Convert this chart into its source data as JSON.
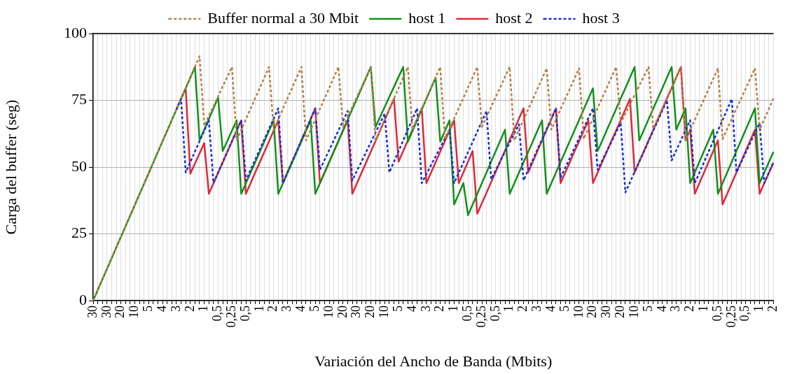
{
  "chart_data": {
    "type": "line",
    "xlabel": "Variación del Ancho de Banda (Mbits)",
    "ylabel": "Carga del buffer (seg)",
    "legend": "top",
    "grid": true,
    "marker": "none",
    "ylim": [
      0,
      100
    ],
    "yticks": [
      0,
      25,
      50,
      75,
      100
    ],
    "categories": [
      "30",
      null,
      null,
      "30",
      null,
      null,
      "20",
      null,
      null,
      "10",
      null,
      null,
      "5",
      null,
      null,
      "4",
      null,
      null,
      "3",
      null,
      null,
      "2",
      null,
      null,
      "1",
      null,
      null,
      "0,5",
      null,
      null,
      "0,25",
      null,
      null,
      "0,5",
      null,
      null,
      "1",
      null,
      null,
      "2",
      null,
      null,
      "3",
      null,
      null,
      "4",
      null,
      null,
      "5",
      null,
      null,
      "10",
      null,
      null,
      "20",
      null,
      null,
      "30",
      null,
      null,
      "20",
      null,
      null,
      "10",
      null,
      null,
      "5",
      null,
      null,
      "4",
      null,
      null,
      "3",
      null,
      null,
      "2",
      null,
      null,
      "1",
      null,
      null,
      "0,5",
      null,
      null,
      "0,25",
      null,
      null,
      "0,5",
      null,
      null,
      "1",
      null,
      null,
      "2",
      null,
      null,
      "3",
      null,
      null,
      "4",
      null,
      null,
      "5",
      null,
      null,
      "10",
      null,
      null,
      "20",
      null,
      null,
      "30",
      null,
      null,
      "20",
      null,
      null,
      "10",
      null,
      null,
      "5",
      null,
      null,
      "4",
      null,
      null,
      "3",
      null,
      null,
      "2",
      null,
      null,
      "1",
      null,
      null,
      "0,5",
      null,
      null,
      "0,25",
      null,
      null,
      "0,5",
      null,
      null,
      "1",
      null,
      null,
      "2"
    ],
    "series": [
      {
        "name": "Buffer normal a 30 Mbit",
        "color": "#b5814a",
        "line_style": "dashed",
        "values": [
          0,
          4,
          8,
          11.9,
          15.9,
          19.9,
          23.9,
          27.8,
          31.8,
          35.8,
          39.8,
          43.7,
          47.7,
          51.7,
          55.7,
          59.7,
          63.6,
          67.6,
          71.6,
          75.6,
          79.5,
          83.5,
          87.5,
          91.5,
          65.5,
          69.2,
          72.8,
          76.5,
          80.2,
          83.8,
          87.5,
          60,
          63.9,
          67.9,
          71.8,
          75.7,
          79.6,
          83.6,
          87.5,
          64,
          67.9,
          71.8,
          75.8,
          79.7,
          83.6,
          87.5,
          60,
          63.9,
          67.9,
          71.8,
          75.7,
          79.6,
          83.6,
          87.5,
          65,
          68.8,
          72.5,
          76.3,
          80,
          83.8,
          87.5,
          60,
          63.9,
          67.9,
          71.8,
          75.7,
          79.6,
          83.6,
          87.5,
          64,
          67.9,
          71.8,
          75.8,
          79.7,
          83.6,
          87.5,
          60.5,
          64.4,
          68.2,
          72.1,
          75.9,
          79.8,
          83.6,
          87.5,
          65,
          68.8,
          72.5,
          76.3,
          80,
          83.8,
          87.5,
          60,
          63.9,
          67.7,
          71.6,
          75.4,
          79.3,
          83.1,
          87,
          64,
          67.8,
          71.7,
          75.5,
          79.3,
          83.2,
          87,
          60.5,
          64.4,
          68.2,
          72.1,
          75.9,
          79.8,
          83.6,
          87.5,
          66.5,
          70,
          73.5,
          77,
          80.5,
          84,
          87.5,
          64.5,
          68.3,
          72.2,
          76,
          79.8,
          83.7,
          87.5,
          60,
          63.9,
          67.7,
          71.6,
          75.4,
          79.3,
          83.1,
          87,
          60.5,
          64.3,
          68.1,
          71.9,
          75.6,
          79.4,
          83.2,
          87,
          64,
          67.9,
          71.8,
          75.7
        ]
      },
      {
        "name": "host 1",
        "color": "#12901a",
        "line_style": "solid",
        "values": [
          0,
          4,
          8,
          11.9,
          15.9,
          19.9,
          23.9,
          27.8,
          31.8,
          35.8,
          39.8,
          43.7,
          47.7,
          51.7,
          55.7,
          59.7,
          63.6,
          67.6,
          71.6,
          75.6,
          79.5,
          83.5,
          87.5,
          60,
          64,
          68,
          72,
          76,
          56,
          59.8,
          63.7,
          67.5,
          40,
          43.9,
          47.9,
          51.8,
          55.7,
          59.6,
          63.6,
          67.5,
          40,
          43.9,
          47.9,
          51.8,
          55.7,
          59.6,
          63.6,
          67.5,
          40,
          44,
          47.9,
          51.9,
          55.8,
          59.8,
          63.8,
          67.7,
          71.7,
          75.6,
          79.6,
          83.5,
          87.5,
          65,
          68.8,
          72.5,
          76.3,
          80,
          83.8,
          87.5,
          59.5,
          63.5,
          67.5,
          71.5,
          75.5,
          79.5,
          83.5,
          59.5,
          63.5,
          67.5,
          36,
          40,
          44,
          32,
          36,
          40,
          44,
          48,
          52,
          56,
          60,
          64,
          40,
          43.9,
          47.9,
          51.8,
          55.7,
          59.6,
          63.6,
          67.5,
          40,
          44,
          47.9,
          51.9,
          55.8,
          59.8,
          63.7,
          67.7,
          71.6,
          75.6,
          79.5,
          56,
          59.9,
          63.9,
          67.8,
          71.8,
          75.7,
          79.6,
          83.6,
          87.5,
          60,
          63.9,
          67.9,
          71.8,
          75.7,
          79.6,
          83.6,
          87.5,
          64,
          68,
          72,
          44,
          48,
          52,
          56,
          60,
          64,
          40,
          44,
          48,
          52,
          56,
          60,
          64,
          68,
          72,
          44,
          47.9,
          51.8,
          55.7
        ]
      },
      {
        "name": "host 2",
        "color": "#dc2a3a",
        "line_style": "solid",
        "values": [
          null,
          null,
          null,
          null,
          null,
          null,
          null,
          null,
          null,
          null,
          null,
          null,
          null,
          null,
          null,
          null,
          null,
          null,
          71.6,
          75.6,
          79.5,
          47.5,
          51.3,
          55.2,
          59,
          40,
          43.9,
          47.9,
          51.8,
          55.7,
          59.6,
          63.6,
          67.5,
          40,
          43.9,
          47.9,
          51.8,
          55.7,
          59.6,
          63.6,
          67.5,
          44,
          48,
          52,
          56,
          60,
          64,
          68,
          72,
          44,
          47.9,
          51.8,
          55.8,
          59.7,
          63.6,
          67.5,
          40,
          43.9,
          47.9,
          51.8,
          55.8,
          59.7,
          63.7,
          67.6,
          71.6,
          75.5,
          52,
          56,
          60,
          64,
          68,
          72,
          44,
          47.9,
          51.8,
          55.8,
          59.7,
          63.6,
          67.5,
          44,
          48,
          52,
          56,
          32.5,
          36.5,
          40.4,
          44.4,
          48.3,
          52.3,
          56.2,
          60.2,
          64.1,
          68.1,
          72,
          48,
          52,
          56,
          60,
          64,
          68,
          72,
          44,
          47.9,
          51.8,
          55.8,
          59.7,
          63.6,
          67.5,
          44,
          47.9,
          51.9,
          55.8,
          59.8,
          63.7,
          67.6,
          71.6,
          75.5,
          48,
          52,
          55.9,
          59.9,
          63.8,
          67.8,
          71.7,
          75.7,
          79.6,
          83.6,
          87.5,
          60,
          64,
          40,
          44,
          48,
          52,
          56,
          60,
          36,
          40,
          44,
          48,
          52,
          56,
          60,
          64,
          40,
          43.9,
          47.8,
          51.7
        ]
      },
      {
        "name": "host 3",
        "color": "#1530d8",
        "line_style": "dashed",
        "values": [
          null,
          null,
          null,
          null,
          null,
          null,
          null,
          null,
          null,
          null,
          null,
          null,
          null,
          null,
          null,
          null,
          null,
          null,
          71.6,
          75.6,
          48,
          51.9,
          55.8,
          59.7,
          63.6,
          67.5,
          44,
          47.9,
          51.8,
          55.8,
          59.7,
          63.6,
          67.5,
          45,
          48.9,
          52.7,
          56.6,
          60.4,
          64.3,
          68.1,
          72,
          44,
          48,
          52,
          56,
          60,
          64,
          68,
          72,
          49,
          52.7,
          56.3,
          60,
          63.7,
          67.3,
          71,
          45,
          48.6,
          52.1,
          55.7,
          59.3,
          62.9,
          66.4,
          70,
          48,
          52,
          56,
          60,
          64,
          68,
          72,
          44,
          47.3,
          50.7,
          54,
          57.3,
          60.7,
          64,
          44,
          47.9,
          51.7,
          55.6,
          59.4,
          63.3,
          67.1,
          71,
          45.5,
          48.9,
          52.3,
          55.8,
          59.2,
          62.6,
          66,
          45,
          48.9,
          52.7,
          56.6,
          60.4,
          64.3,
          68.1,
          72,
          46,
          49.7,
          53.4,
          57.1,
          60.9,
          64.6,
          68.3,
          72,
          49,
          52.5,
          56,
          59.5,
          63,
          66.5,
          40.5,
          44.3,
          48.2,
          52,
          55.8,
          59.7,
          63.5,
          67.3,
          71.2,
          75,
          52.5,
          56.3,
          60,
          63.8,
          67.5,
          44,
          47.9,
          51.9,
          55.8,
          59.8,
          63.7,
          67.6,
          71.6,
          75.5,
          48,
          51.7,
          55.4,
          59.1,
          62.8,
          66.5,
          44,
          47.9,
          51.8
        ]
      }
    ]
  }
}
